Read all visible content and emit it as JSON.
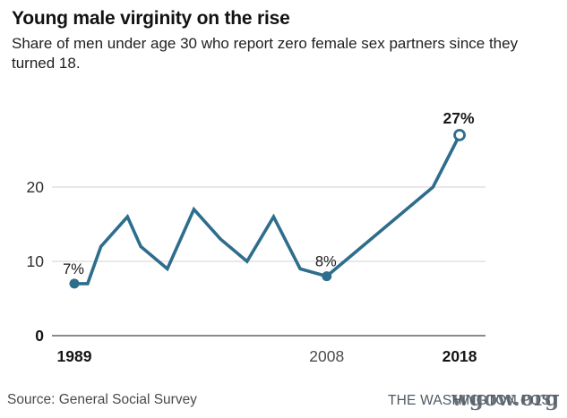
{
  "header": {
    "title": "Young male virginity on the rise",
    "subtitle": "Share of men under age 30 who report zero female sex partners since they turned 18."
  },
  "chart_data": {
    "type": "line",
    "title": "Young male virginity on the rise",
    "subtitle": "Share of men under age 30 who report zero female sex partners since they turned 18.",
    "xlabel": "",
    "ylabel": "",
    "x_range": [
      1989,
      2018
    ],
    "y_range": [
      0,
      28
    ],
    "grid": true,
    "legend": false,
    "line_color": "#2e6d8c",
    "series": [
      {
        "name": "Share of men under 30 reporting zero female sex partners (%)",
        "points": [
          {
            "year": 1989,
            "value": 7
          },
          {
            "year": 1990,
            "value": 7
          },
          {
            "year": 1991,
            "value": 12
          },
          {
            "year": 1993,
            "value": 16
          },
          {
            "year": 1994,
            "value": 12
          },
          {
            "year": 1996,
            "value": 9
          },
          {
            "year": 1998,
            "value": 17
          },
          {
            "year": 2000,
            "value": 13
          },
          {
            "year": 2002,
            "value": 10
          },
          {
            "year": 2004,
            "value": 16
          },
          {
            "year": 2006,
            "value": 9
          },
          {
            "year": 2008,
            "value": 8
          },
          {
            "year": 2016,
            "value": 20
          },
          {
            "year": 2018,
            "value": 27
          }
        ]
      }
    ],
    "markers": [
      {
        "year": 1989,
        "value": 7,
        "style": "filled"
      },
      {
        "year": 2008,
        "value": 8,
        "style": "filled"
      },
      {
        "year": 2018,
        "value": 27,
        "style": "open"
      }
    ],
    "point_labels": [
      {
        "year": 1989,
        "value": 7,
        "text": "7%",
        "bold": false
      },
      {
        "year": 2008,
        "value": 8,
        "text": "8%",
        "bold": false
      },
      {
        "year": 2018,
        "value": 27,
        "text": "27%",
        "bold": true
      }
    ],
    "y_ticks": [
      {
        "value": 0,
        "label": "0",
        "emphasis": true
      },
      {
        "value": 10,
        "label": "10",
        "emphasis": false
      },
      {
        "value": 20,
        "label": "20",
        "emphasis": false
      }
    ],
    "x_ticks": [
      {
        "year": 1989,
        "label": "1989",
        "emphasis": true
      },
      {
        "year": 2008,
        "label": "2008",
        "emphasis": false
      },
      {
        "year": 2018,
        "label": "2018",
        "emphasis": true
      }
    ]
  },
  "footer": {
    "source": "Source: General Social Survey",
    "credit": "THE WASHINGTON POST",
    "watermark": "wgow.org"
  },
  "colors": {
    "line": "#2e6d8c",
    "grid": "#d9d9d9",
    "zero_line": "#8a8a8a",
    "tick_bold": "#141414",
    "tick_regular": "#4a4a4a",
    "label": "#1a1a1a"
  }
}
